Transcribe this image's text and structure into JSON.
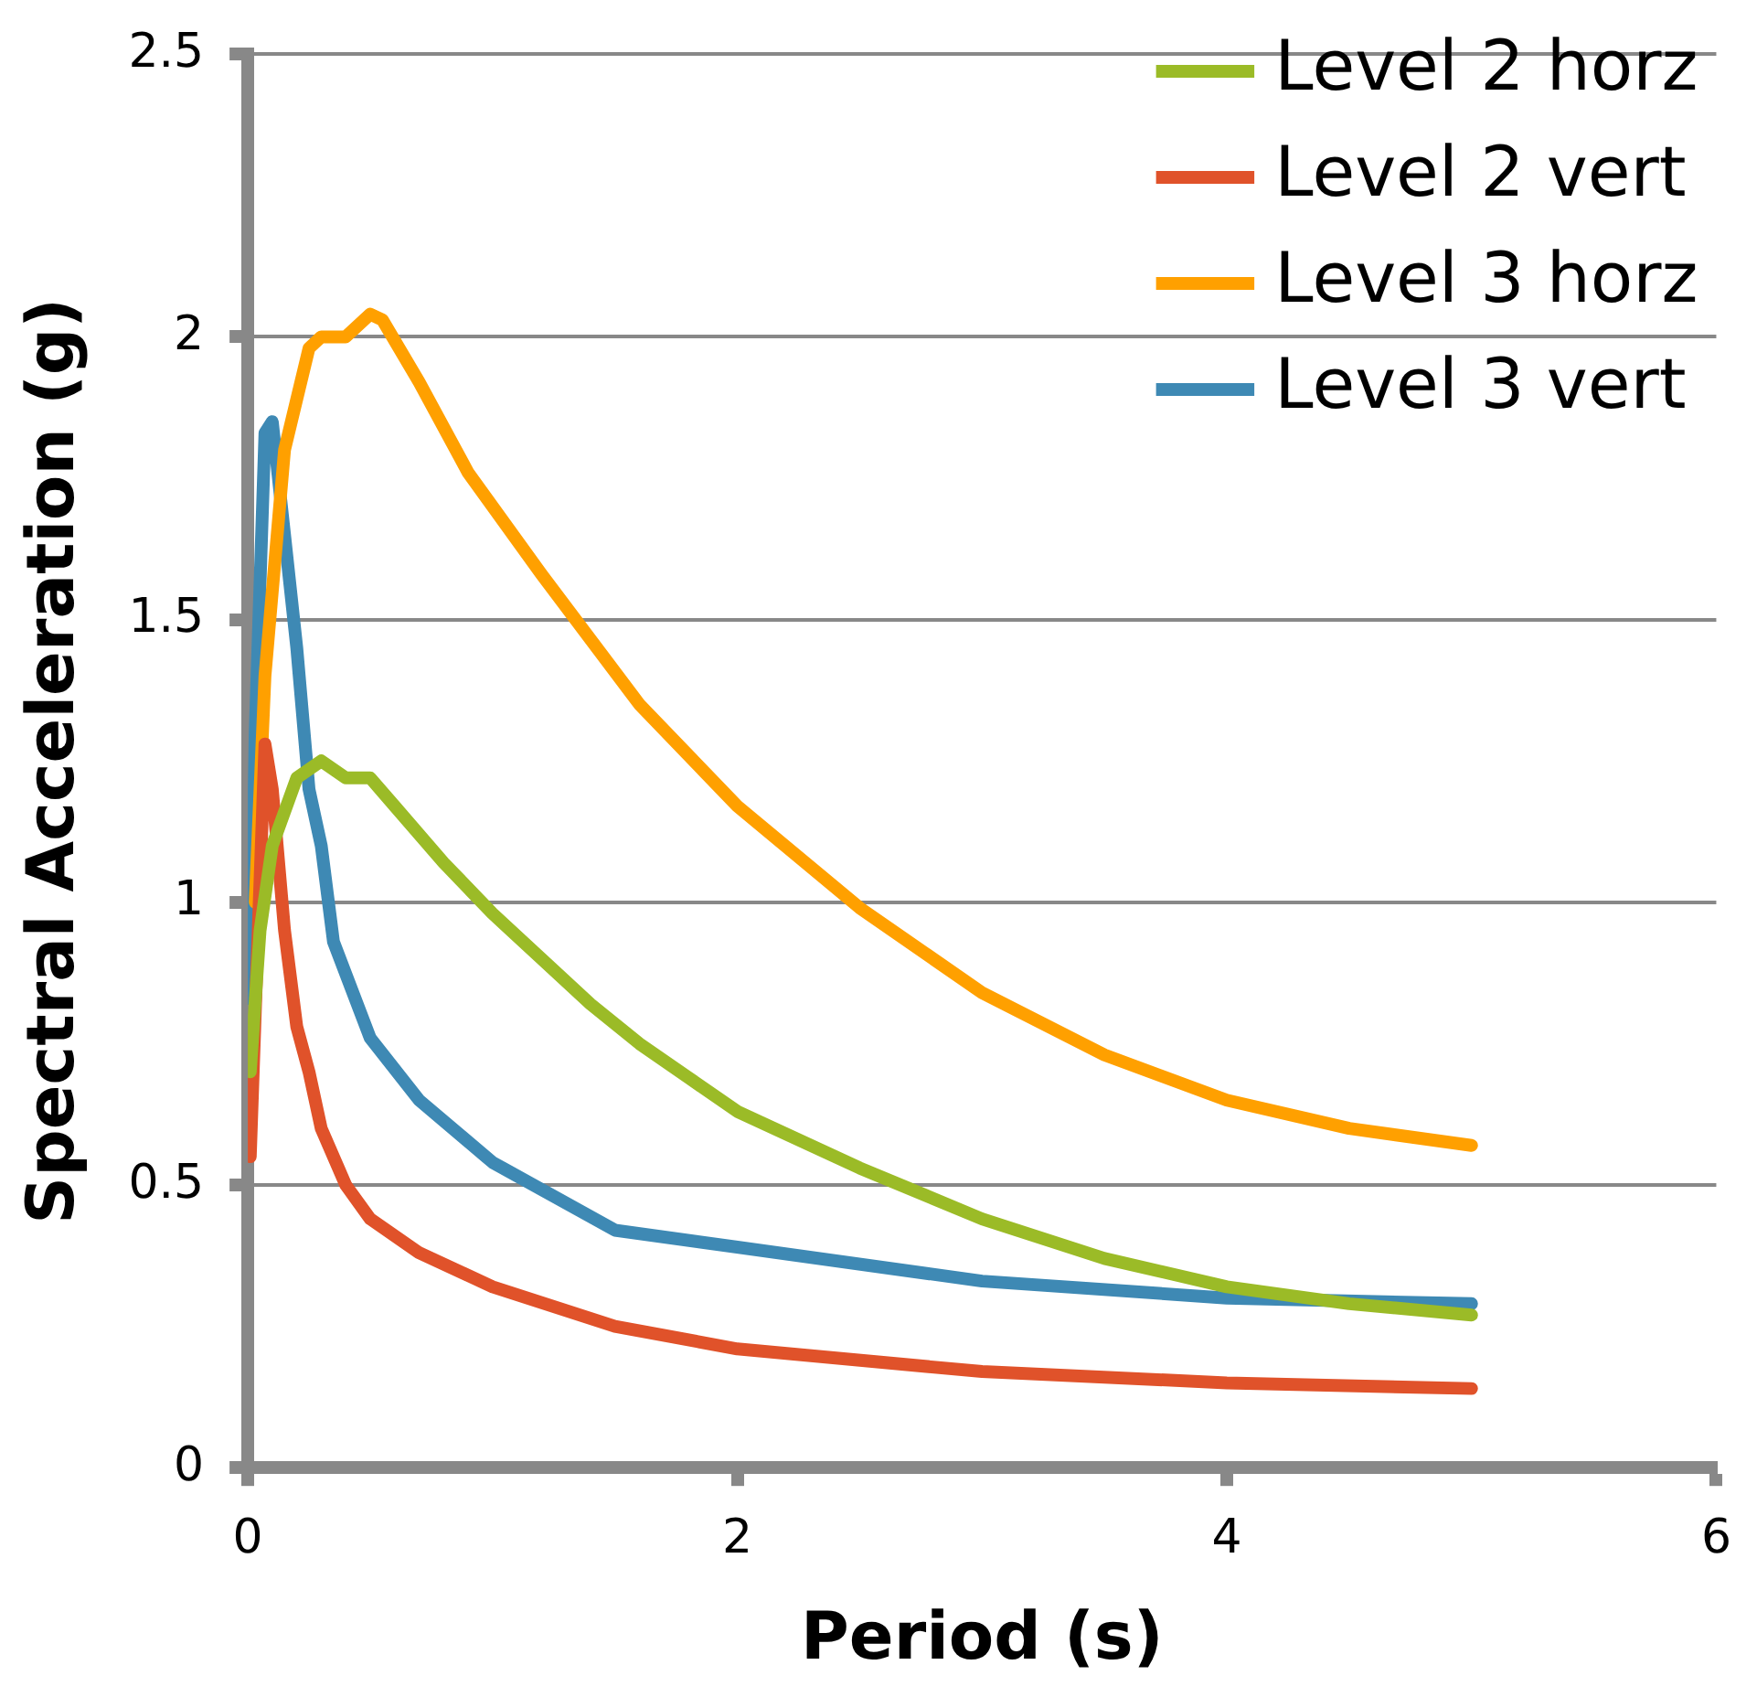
{
  "chart_data": {
    "type": "line",
    "xlabel": "Period (s)",
    "ylabel": "Spectral Acceleration (g)",
    "xlim": [
      0,
      6
    ],
    "xticks": [
      0,
      2,
      4,
      6
    ],
    "ylim": [
      0,
      2.5
    ],
    "yticks": [
      0,
      0.5,
      1,
      1.5,
      2,
      2.5
    ],
    "grid": "y",
    "legend": "top right",
    "marker": "none",
    "line_style": "solid",
    "series": [
      {
        "name": "Level 2 horz",
        "color": "#9bbb27",
        "x": [
          0.01,
          0.05,
          0.1,
          0.2,
          0.3,
          0.4,
          0.5,
          0.6,
          0.8,
          1.0,
          1.2,
          1.4,
          1.6,
          1.8,
          2.0,
          2.5,
          3.0,
          3.5,
          4.0,
          4.5,
          5.0
        ],
        "values": [
          0.7,
          0.95,
          1.1,
          1.22,
          1.25,
          1.22,
          1.22,
          1.17,
          1.07,
          0.98,
          0.9,
          0.82,
          0.75,
          0.69,
          0.63,
          0.53,
          0.44,
          0.37,
          0.32,
          0.29,
          0.27
        ]
      },
      {
        "name": "Level 2 vert",
        "color": "#e0522a",
        "x": [
          0.01,
          0.03,
          0.07,
          0.1,
          0.15,
          0.2,
          0.25,
          0.3,
          0.4,
          0.5,
          0.7,
          1.0,
          1.5,
          2.0,
          3.0,
          4.0,
          5.0
        ],
        "values": [
          0.55,
          0.8,
          1.28,
          1.2,
          0.95,
          0.78,
          0.7,
          0.6,
          0.5,
          0.44,
          0.38,
          0.32,
          0.25,
          0.21,
          0.17,
          0.15,
          0.14
        ]
      },
      {
        "name": "Level 3 horz",
        "color": "#ffa000",
        "x": [
          0.03,
          0.07,
          0.15,
          0.25,
          0.3,
          0.4,
          0.5,
          0.55,
          0.7,
          0.9,
          1.2,
          1.6,
          2.0,
          2.5,
          3.0,
          3.5,
          4.0,
          4.5,
          5.0
        ],
        "values": [
          1.0,
          1.4,
          1.8,
          1.98,
          2.0,
          2.0,
          2.04,
          2.03,
          1.92,
          1.76,
          1.58,
          1.35,
          1.17,
          0.99,
          0.84,
          0.73,
          0.65,
          0.6,
          0.57
        ]
      },
      {
        "name": "Level 3 vert",
        "color": "#3e89b4",
        "x": [
          0.01,
          0.03,
          0.07,
          0.1,
          0.15,
          0.2,
          0.25,
          0.3,
          0.35,
          0.5,
          0.7,
          1.0,
          1.5,
          2.0,
          3.0,
          4.0,
          5.0
        ],
        "values": [
          0.83,
          1.3,
          1.83,
          1.85,
          1.65,
          1.45,
          1.2,
          1.1,
          0.93,
          0.76,
          0.65,
          0.54,
          0.42,
          0.39,
          0.33,
          0.3,
          0.29
        ]
      }
    ]
  }
}
